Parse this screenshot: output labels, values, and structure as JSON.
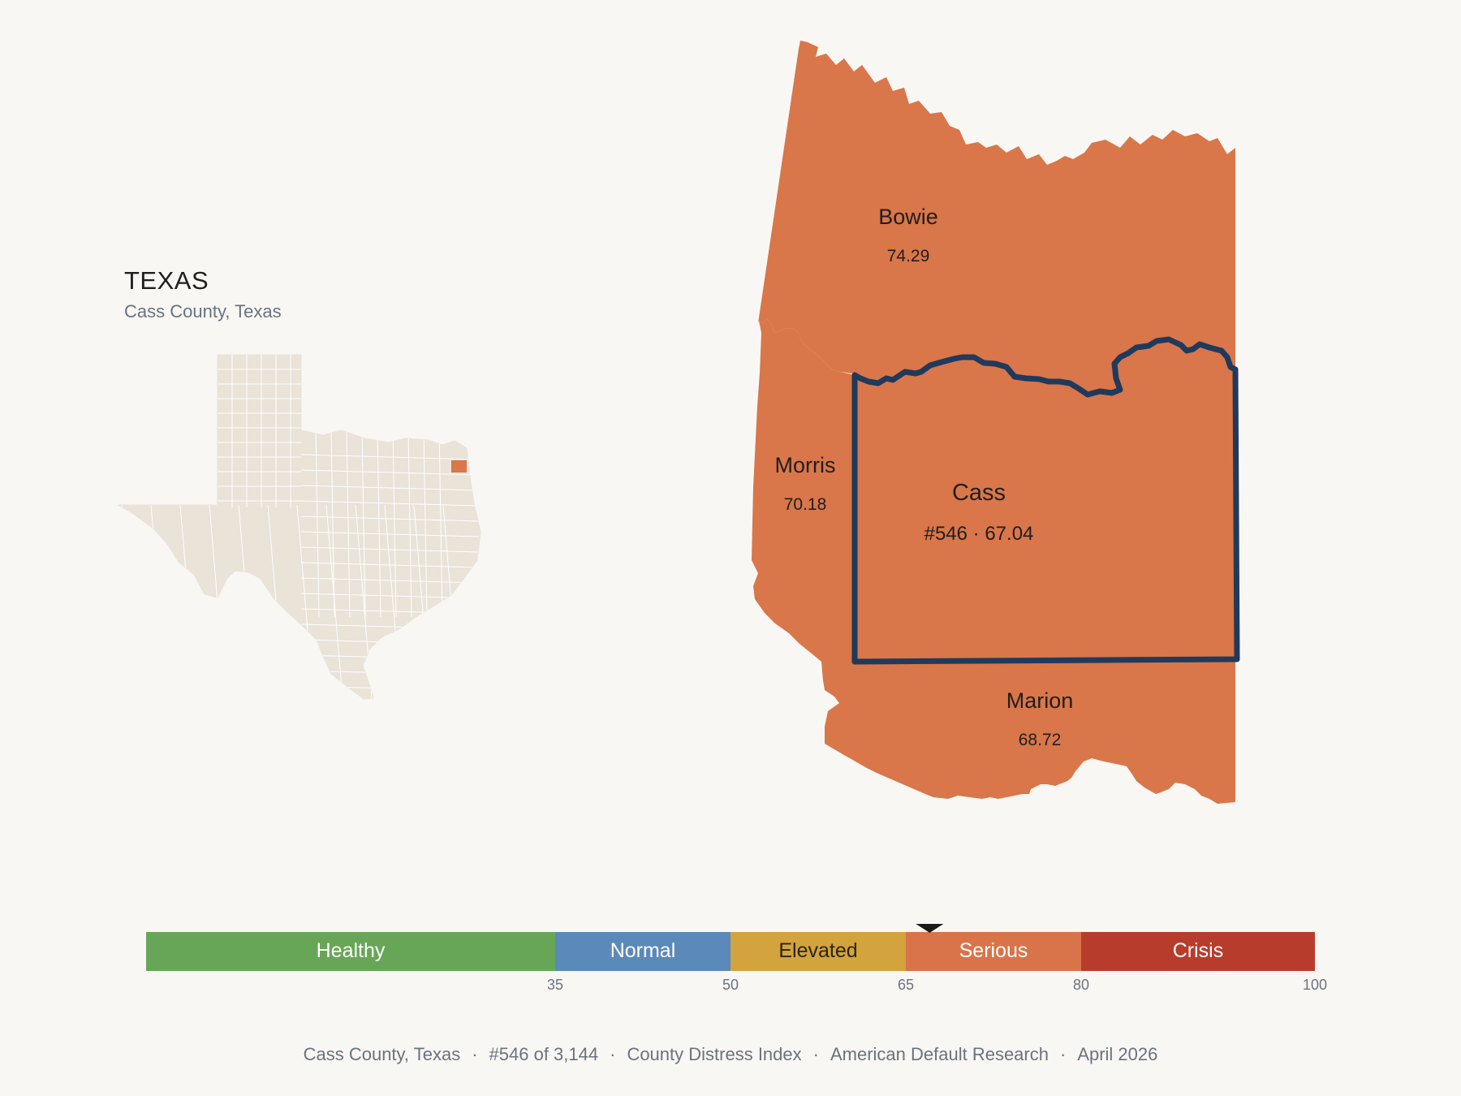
{
  "state": {
    "title": "TEXAS",
    "subtitle": "Cass County, Texas"
  },
  "counties": {
    "bowie": {
      "name": "Bowie",
      "value": "74.29"
    },
    "morris": {
      "name": "Morris",
      "value": "70.18"
    },
    "cass": {
      "name": "Cass",
      "value": "#546 · 67.04"
    },
    "marion": {
      "name": "Marion",
      "value": "68.72"
    }
  },
  "scale": {
    "min": 0,
    "max": 100,
    "marker_value": 67.04,
    "bands": [
      {
        "label": "Healthy",
        "from": 0,
        "to": 35,
        "color": "#67a657",
        "text_color": "#ffffff"
      },
      {
        "label": "Normal",
        "from": 35,
        "to": 50,
        "color": "#5b89b9",
        "text_color": "#ffffff"
      },
      {
        "label": "Elevated",
        "from": 50,
        "to": 65,
        "color": "#d3a33d",
        "text_color": "#2a2418"
      },
      {
        "label": "Serious",
        "from": 65,
        "to": 80,
        "color": "#d9744a",
        "text_color": "#ffffff"
      },
      {
        "label": "Crisis",
        "from": 80,
        "to": 100,
        "color": "#b83c2c",
        "text_color": "#ffffff"
      }
    ],
    "ticks": [
      "35",
      "50",
      "65",
      "80",
      "100"
    ]
  },
  "footer": {
    "county": "Cass County, Texas",
    "rank": "#546 of 3,144",
    "index": "County Distress Index",
    "source": "American Default Research",
    "date": "April 2026"
  },
  "colors": {
    "county_fill": "#d9764a",
    "highlight_outline": "#1f3a5c",
    "state_fill": "#e9e3d8",
    "background": "#f9f7f3"
  }
}
